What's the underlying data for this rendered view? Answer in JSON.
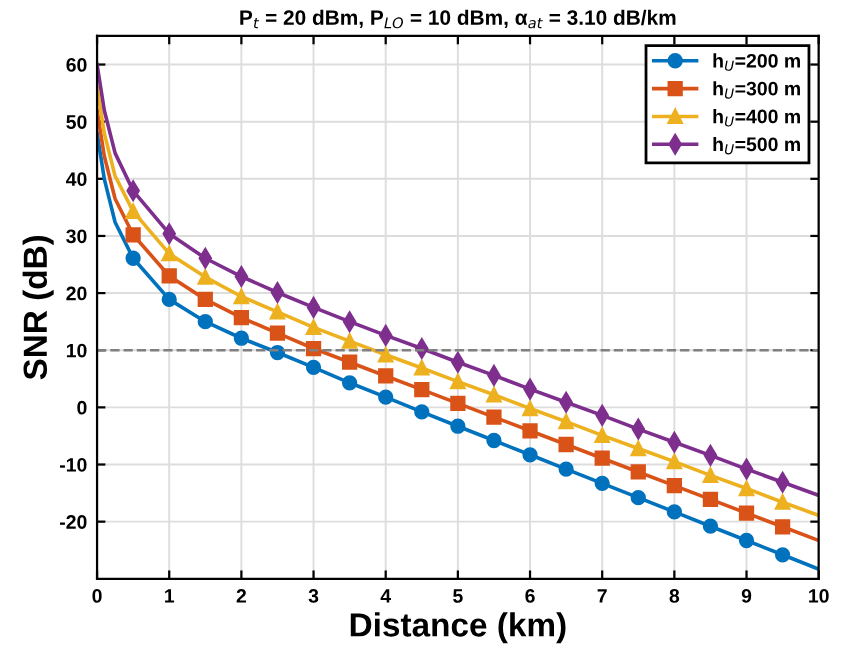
{
  "chart_data": {
    "type": "line",
    "title": "P$_{t}$ = 20 dBm, P$_{LO}$ = 10 dBm, α$_{at}$ = 3.10 dB/km",
    "xlabel": "Distance (km)",
    "ylabel": "SNR (dB)",
    "x": [
      0,
      0.1,
      0.25,
      0.5,
      1,
      1.5,
      2,
      2.5,
      3,
      3.5,
      4,
      4.5,
      5,
      5.5,
      6,
      6.5,
      7,
      7.5,
      8,
      8.5,
      9,
      9.5,
      10
    ],
    "series": [
      {
        "name": "h$_{U}$=200 m",
        "color": "#0072bd",
        "marker": "circle",
        "values": [
          48,
          40,
          32.4,
          26.1,
          18.9,
          15,
          12.1,
          9.6,
          7,
          4.3,
          1.8,
          -0.8,
          -3.3,
          -5.8,
          -8.3,
          -10.8,
          -13.3,
          -15.8,
          -18.3,
          -20.8,
          -23.3,
          -25.8,
          -28.3
        ]
      },
      {
        "name": "h$_{U}$=300 m",
        "color": "#d95319",
        "marker": "square",
        "values": [
          52,
          44,
          36.5,
          30.2,
          23,
          18.9,
          15.7,
          13,
          10.3,
          7.9,
          5.5,
          3.1,
          0.7,
          -1.7,
          -4.1,
          -6.5,
          -8.9,
          -11.3,
          -13.7,
          -16.1,
          -18.5,
          -20.9,
          -23.3
        ]
      },
      {
        "name": "h$_{U}$=400 m",
        "color": "#edb120",
        "marker": "triangle",
        "values": [
          56,
          48,
          40.5,
          34.3,
          26.9,
          22.8,
          19.4,
          16.7,
          14,
          11.6,
          9.2,
          6.9,
          4.5,
          2.2,
          -0.2,
          -2.5,
          -4.9,
          -7.2,
          -9.5,
          -11.9,
          -14.2,
          -16.6,
          -18.9
        ]
      },
      {
        "name": "h$_{U}$=500 m",
        "color": "#7e2f8e",
        "marker": "diamond",
        "values": [
          60,
          52,
          44.5,
          37.9,
          30.4,
          26.1,
          22.9,
          20.1,
          17.5,
          15,
          12.6,
          10.3,
          7.9,
          5.6,
          3.2,
          0.9,
          -1.4,
          -3.8,
          -6.1,
          -8.4,
          -10.8,
          -13.1,
          -15.4
        ]
      }
    ],
    "xlim": [
      0,
      10
    ],
    "ylim": [
      -30,
      65
    ],
    "xticks": [
      0,
      1,
      2,
      3,
      4,
      5,
      6,
      7,
      8,
      9,
      10
    ],
    "yticks": [
      -20,
      -10,
      0,
      10,
      20,
      30,
      40,
      50,
      60
    ],
    "ref_lines": [
      {
        "axis": "y",
        "value": 10,
        "color": "#808080",
        "line_style": "dashed"
      }
    ],
    "grid": true,
    "legend": "top right",
    "line_style": "solid"
  }
}
